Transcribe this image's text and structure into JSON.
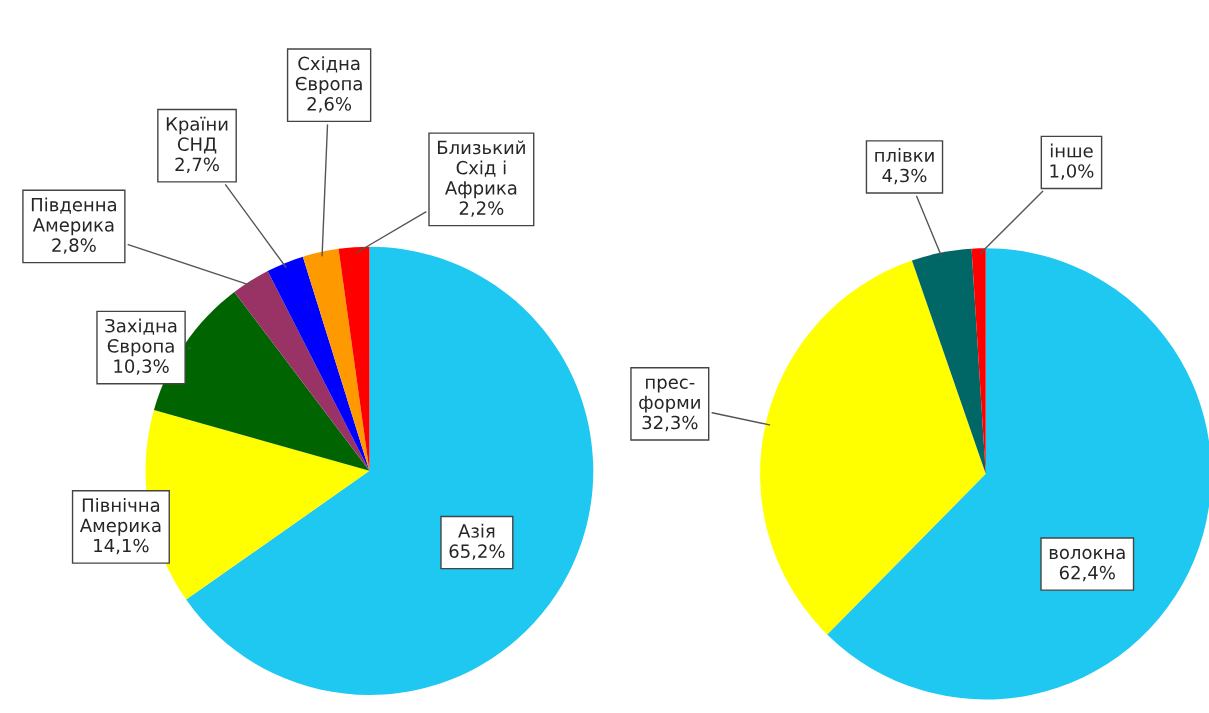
{
  "chart_data": [
    {
      "type": "pie",
      "categories": [
        "Азія",
        "Північна\nАмерика",
        "Західна\nЄвропа",
        "Південна\nАмерика",
        "Країни\nСНД",
        "Східна\nЄвропа",
        "Близький\nСхід і\nАфрика"
      ],
      "values": [
        65.2,
        14.1,
        10.3,
        2.8,
        2.7,
        2.6,
        2.2
      ],
      "value_labels": [
        "65,2%",
        "14,1%",
        "10,3%",
        "2,8%",
        "2,7%",
        "2,6%",
        "2,2%"
      ],
      "colors": [
        "#1ec8f0",
        "#ffff00",
        "#006400",
        "#993366",
        "#0000ff",
        "#ff9900",
        "#ff0000"
      ]
    },
    {
      "type": "pie",
      "categories": [
        "волокна",
        "прес-\nформи",
        "плівки",
        "інше"
      ],
      "values": [
        62.4,
        32.3,
        4.3,
        1.0
      ],
      "value_labels": [
        "62,4%",
        "32,3%",
        "4,3%",
        "1,0%"
      ],
      "colors": [
        "#1ec8f0",
        "#ffff00",
        "#006666",
        "#ff0000"
      ]
    }
  ]
}
